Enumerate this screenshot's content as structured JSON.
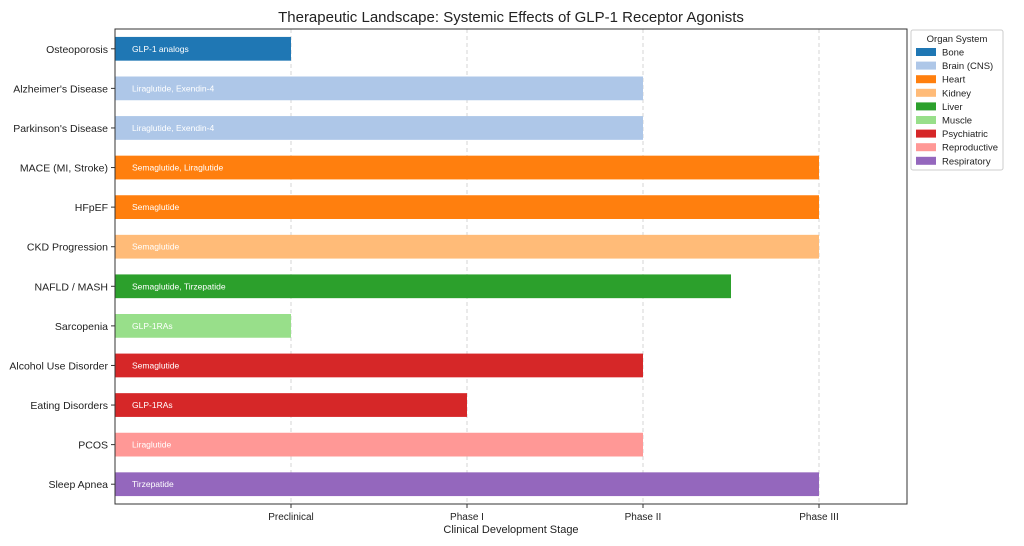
{
  "chart_data": {
    "type": "bar",
    "orientation": "horizontal",
    "title": "Therapeutic Landscape: Systemic Effects of GLP-1 Receptor Agonists",
    "xlabel": "Clinical Development Stage",
    "ylabel": "",
    "x_ticks": [
      "Preclinical",
      "Phase I",
      "Phase II",
      "Phase III"
    ],
    "x_tick_values": [
      1,
      2,
      3,
      4
    ],
    "xlim": [
      0,
      4.5
    ],
    "grid": "vertical-dashed",
    "legend": {
      "title": "Organ System",
      "placement": "outside-top-right",
      "entries": [
        {
          "name": "Bone",
          "color": "#1f77b4"
        },
        {
          "name": "Brain (CNS)",
          "color": "#aec7e8"
        },
        {
          "name": "Heart",
          "color": "#ff7f0e"
        },
        {
          "name": "Kidney",
          "color": "#ffbb78"
        },
        {
          "name": "Liver",
          "color": "#2ca02c"
        },
        {
          "name": "Muscle",
          "color": "#98df8a"
        },
        {
          "name": "Psychiatric",
          "color": "#d62728"
        },
        {
          "name": "Reproductive",
          "color": "#ff9896"
        },
        {
          "name": "Respiratory",
          "color": "#9467bd"
        }
      ]
    },
    "bars": [
      {
        "category": "Osteoporosis",
        "value": 1,
        "system": "Bone",
        "drugs": "GLP-1 analogs"
      },
      {
        "category": "Alzheimer's Disease",
        "value": 3,
        "system": "Brain (CNS)",
        "drugs": "Liraglutide, Exendin-4"
      },
      {
        "category": "Parkinson's Disease",
        "value": 3,
        "system": "Brain (CNS)",
        "drugs": "Liraglutide, Exendin-4"
      },
      {
        "category": "MACE (MI, Stroke)",
        "value": 4,
        "system": "Heart",
        "drugs": "Semaglutide, Liraglutide"
      },
      {
        "category": "HFpEF",
        "value": 4,
        "system": "Heart",
        "drugs": "Semaglutide"
      },
      {
        "category": "CKD Progression",
        "value": 4,
        "system": "Kidney",
        "drugs": "Semaglutide"
      },
      {
        "category": "NAFLD / MASH",
        "value": 3.5,
        "system": "Liver",
        "drugs": "Semaglutide, Tirzepatide"
      },
      {
        "category": "Sarcopenia",
        "value": 1,
        "system": "Muscle",
        "drugs": "GLP-1RAs"
      },
      {
        "category": "Alcohol Use Disorder",
        "value": 3,
        "system": "Psychiatric",
        "drugs": "Semaglutide"
      },
      {
        "category": "Eating Disorders",
        "value": 2,
        "system": "Psychiatric",
        "drugs": "GLP-1RAs"
      },
      {
        "category": "PCOS",
        "value": 3,
        "system": "Reproductive",
        "drugs": "Liraglutide"
      },
      {
        "category": "Sleep Apnea",
        "value": 4,
        "system": "Respiratory",
        "drugs": "Tirzepatide"
      }
    ]
  }
}
